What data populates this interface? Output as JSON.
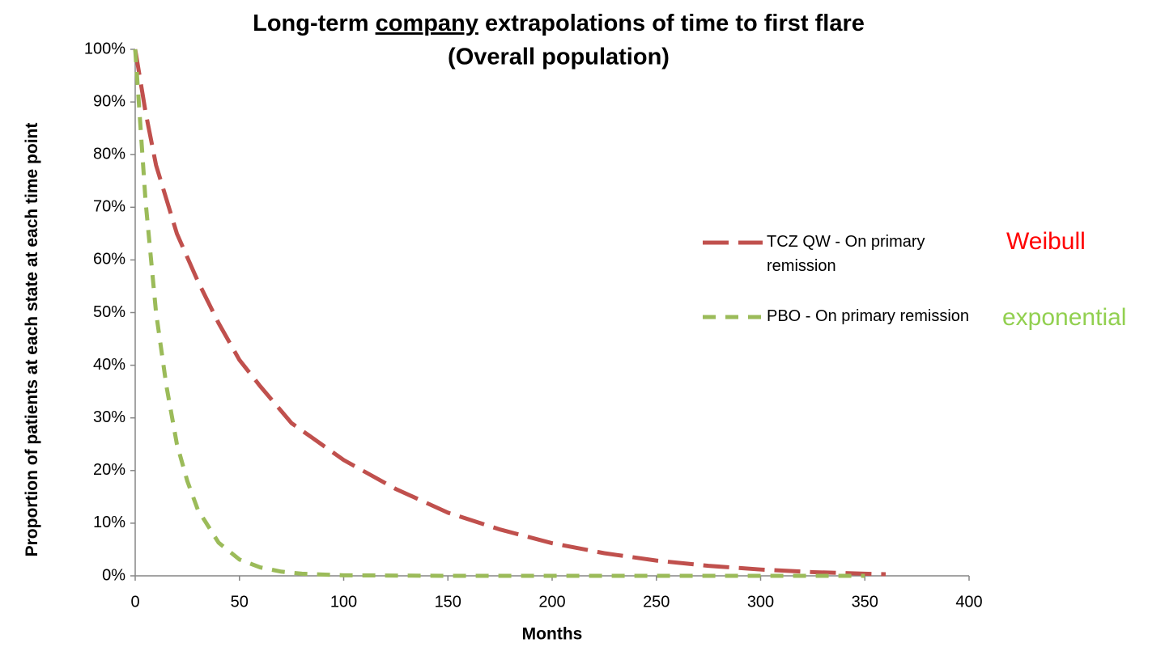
{
  "chart_data": {
    "type": "line",
    "title": [
      {
        "text": "Long-term "
      },
      {
        "text": "company",
        "underline": true
      },
      {
        "text": " extrapolations of time to first flare"
      }
    ],
    "subtitle": "(Overall population)",
    "x_label": "Months",
    "y_label": "Proportion of patients at each state at each time point",
    "xlim": [
      0,
      400
    ],
    "xticks": [
      0,
      50,
      100,
      150,
      200,
      250,
      300,
      350,
      400
    ],
    "ylim": [
      0,
      100
    ],
    "yticks": [
      {
        "value": 0,
        "label": "0%"
      },
      {
        "value": 10,
        "label": "10%"
      },
      {
        "value": 20,
        "label": "20%"
      },
      {
        "value": 30,
        "label": "30%"
      },
      {
        "value": 40,
        "label": "40%"
      },
      {
        "value": 50,
        "label": "50%"
      },
      {
        "value": 60,
        "label": "60%"
      },
      {
        "value": 70,
        "label": "70%"
      },
      {
        "value": 80,
        "label": "80%"
      },
      {
        "value": 90,
        "label": "90%"
      },
      {
        "value": 100,
        "label": "100%"
      }
    ],
    "grid": false,
    "legend": "right",
    "series": [
      {
        "name": "TCZ QW - On primary remission",
        "color": "#c0504d",
        "line_style": "long-dash",
        "x": [
          0,
          5,
          10,
          20,
          30,
          40,
          50,
          60,
          75,
          100,
          125,
          150,
          175,
          200,
          225,
          250,
          275,
          300,
          325,
          350,
          360
        ],
        "values": [
          100,
          88,
          78,
          65,
          56,
          48,
          41,
          36,
          29,
          22,
          16.5,
          12,
          8.8,
          6.2,
          4.3,
          2.9,
          1.9,
          1.2,
          0.7,
          0.4,
          0.3
        ]
      },
      {
        "name": "PBO - On primary remission",
        "color": "#9bbb59",
        "line_style": "short-dash",
        "x": [
          0,
          5,
          10,
          15,
          20,
          25,
          30,
          40,
          50,
          60,
          70,
          80,
          100,
          150,
          200,
          250,
          300,
          350
        ],
        "values": [
          100,
          71,
          50,
          36,
          25,
          18,
          12.6,
          6.3,
          3.1,
          1.6,
          0.8,
          0.4,
          0.1,
          0,
          0,
          0,
          0,
          0
        ]
      }
    ],
    "annotations": [
      {
        "text": "Weibull",
        "color": "#ff0000"
      },
      {
        "text": "exponential",
        "color": "#92d050"
      }
    ]
  }
}
